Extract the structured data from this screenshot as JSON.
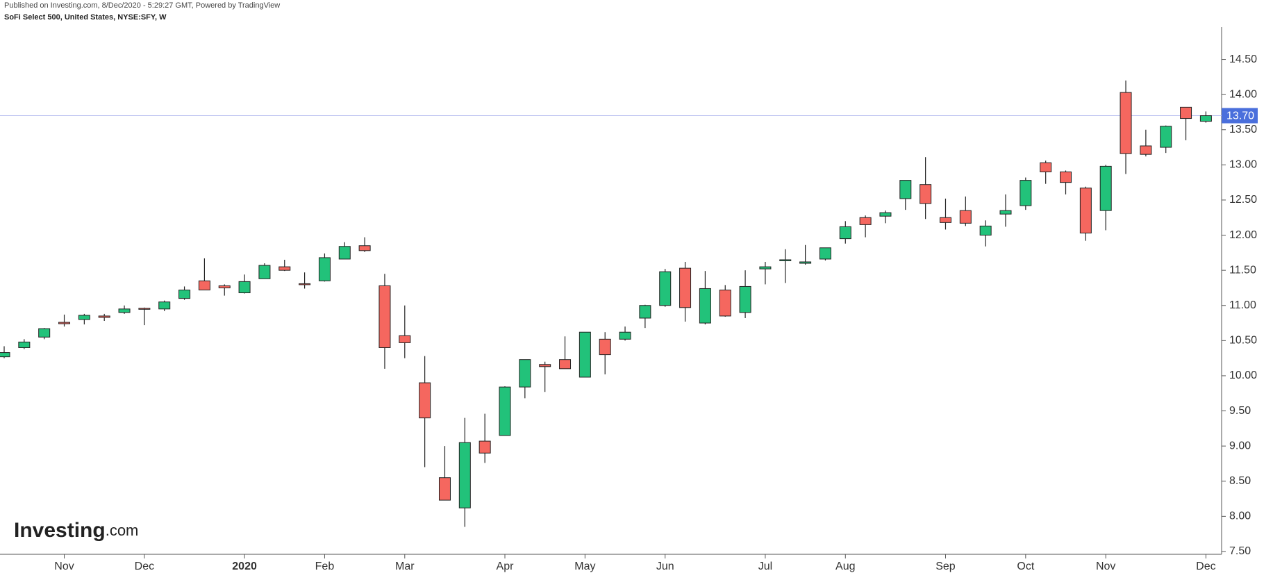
{
  "header": {
    "published": "Published on Investing.com, 8/Dec/2020 - 5:29:27 GMT, Powered by TradingView",
    "symbol": "SoFi Select 500, United States, NYSE:SFY, W"
  },
  "logo": {
    "brand": "Investing",
    "suffix": ".com"
  },
  "chart_data": {
    "type": "candlestick",
    "categories": [
      null,
      null,
      null,
      "Nov",
      null,
      null,
      null,
      "Dec",
      null,
      null,
      null,
      null,
      "2020",
      null,
      null,
      null,
      "Feb",
      null,
      null,
      null,
      "Mar",
      null,
      null,
      null,
      null,
      "Apr",
      null,
      null,
      null,
      "May",
      null,
      null,
      null,
      "Jun",
      null,
      null,
      null,
      null,
      "Jul",
      null,
      null,
      null,
      "Aug",
      null,
      null,
      null,
      null,
      "Sep",
      null,
      null,
      null,
      "Oct",
      null,
      null,
      null,
      "Nov",
      null,
      null,
      null,
      null,
      "Dec"
    ],
    "series": [
      {
        "up_color": "#22c27a",
        "down_color": "#f5675f",
        "open": [
          10.27,
          10.4,
          10.55,
          10.76,
          10.8,
          10.85,
          10.9,
          10.96,
          10.95,
          11.1,
          11.35,
          11.28,
          11.18,
          11.38,
          11.55,
          11.31,
          11.35,
          11.66,
          11.85,
          11.28,
          10.57,
          9.9,
          8.55,
          8.12,
          9.07,
          9.15,
          9.84,
          10.16,
          10.23,
          9.98,
          10.52,
          10.52,
          10.82,
          11.0,
          11.53,
          10.75,
          11.22,
          10.9,
          11.52,
          11.65,
          11.6,
          11.66,
          11.95,
          12.25,
          12.27,
          12.52,
          12.72,
          12.25,
          12.35,
          12.0,
          12.3,
          12.42,
          13.03,
          12.9,
          12.67,
          12.35,
          14.03,
          13.27,
          13.25,
          13.82,
          13.62
        ],
        "high": [
          10.42,
          10.52,
          10.68,
          10.87,
          10.88,
          10.88,
          11.0,
          10.97,
          11.07,
          11.27,
          11.67,
          11.3,
          11.44,
          11.6,
          11.65,
          11.47,
          11.74,
          11.9,
          11.97,
          11.45,
          11.0,
          10.28,
          9.0,
          9.4,
          9.46,
          9.85,
          10.23,
          10.2,
          10.56,
          10.62,
          10.62,
          10.7,
          11.01,
          11.52,
          11.62,
          11.49,
          11.29,
          11.5,
          11.62,
          11.8,
          11.86,
          11.82,
          12.2,
          12.28,
          12.35,
          12.78,
          13.11,
          12.52,
          12.55,
          12.21,
          12.58,
          12.82,
          13.06,
          12.92,
          12.69,
          13.0,
          14.2,
          13.5,
          13.56,
          13.82,
          13.76
        ],
        "low": [
          10.25,
          10.38,
          10.52,
          10.7,
          10.73,
          10.78,
          10.88,
          10.72,
          10.92,
          11.08,
          11.22,
          11.14,
          11.17,
          11.38,
          11.49,
          11.24,
          11.34,
          11.66,
          11.76,
          10.1,
          10.25,
          8.7,
          8.23,
          7.85,
          8.76,
          9.15,
          9.68,
          9.77,
          10.1,
          9.98,
          10.02,
          10.5,
          10.68,
          10.98,
          10.77,
          10.73,
          10.84,
          10.82,
          11.3,
          11.32,
          11.58,
          11.64,
          11.88,
          11.97,
          12.17,
          12.36,
          12.23,
          12.08,
          12.13,
          11.84,
          12.12,
          12.36,
          12.73,
          12.58,
          11.92,
          12.07,
          12.87,
          13.12,
          13.17,
          13.35,
          13.6
        ],
        "close": [
          10.33,
          10.48,
          10.67,
          10.74,
          10.86,
          10.83,
          10.95,
          10.95,
          11.05,
          11.22,
          11.22,
          11.25,
          11.34,
          11.57,
          11.5,
          11.3,
          11.68,
          11.84,
          11.78,
          10.4,
          10.47,
          9.4,
          8.23,
          9.05,
          8.9,
          9.84,
          10.23,
          10.13,
          10.1,
          10.62,
          10.3,
          10.62,
          11.0,
          11.48,
          10.97,
          11.24,
          10.85,
          11.27,
          11.55,
          11.65,
          11.62,
          11.82,
          12.12,
          12.15,
          12.32,
          12.78,
          12.45,
          12.18,
          12.17,
          12.13,
          12.35,
          12.78,
          12.9,
          12.75,
          12.03,
          12.98,
          13.16,
          13.15,
          13.55,
          13.66,
          13.7
        ]
      }
    ],
    "last_price": {
      "value": 13.7,
      "label": "13.70",
      "color": "#4a6fdc"
    },
    "ylim": [
      7.46,
      14.96
    ],
    "yticks": [
      {
        "value": 7.5,
        "label": "7.50"
      },
      {
        "value": 8,
        "label": "8.00"
      },
      {
        "value": 8.5,
        "label": "8.50"
      },
      {
        "value": 9,
        "label": "9.00"
      },
      {
        "value": 9.5,
        "label": "9.50"
      },
      {
        "value": 10,
        "label": "10.00"
      },
      {
        "value": 10.5,
        "label": "10.50"
      },
      {
        "value": 11,
        "label": "11.00"
      },
      {
        "value": 11.5,
        "label": "11.50"
      },
      {
        "value": 12,
        "label": "12.00"
      },
      {
        "value": 12.5,
        "label": "12.50"
      },
      {
        "value": 13,
        "label": "13.00"
      },
      {
        "value": 13.5,
        "label": "13.50"
      },
      {
        "value": 14,
        "label": "14.00"
      },
      {
        "value": 14.5,
        "label": "14.50"
      }
    ]
  }
}
